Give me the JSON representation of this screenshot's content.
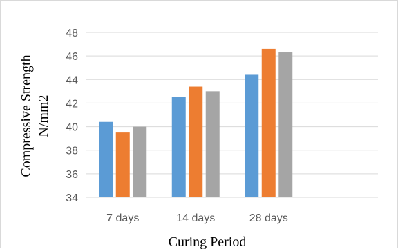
{
  "chart_data": {
    "type": "bar",
    "categories": [
      "7 days",
      "14 days",
      "28 days"
    ],
    "series": [
      {
        "color": "#5b9bd5",
        "values": [
          40.4,
          42.5,
          44.4
        ]
      },
      {
        "color": "#ed7d31",
        "values": [
          39.5,
          43.4,
          46.6
        ]
      },
      {
        "color": "#a5a5a5",
        "values": [
          40.0,
          43.0,
          46.3
        ]
      }
    ],
    "xlabel": "Curing Period",
    "ylabel_line1": "Compressive Strength",
    "ylabel_line2": "N/mm2",
    "ylim": [
      34,
      48
    ],
    "yticks": [
      34,
      36,
      38,
      40,
      42,
      44,
      46,
      48
    ],
    "slot_count": 4,
    "grid": true,
    "legend": "none"
  }
}
